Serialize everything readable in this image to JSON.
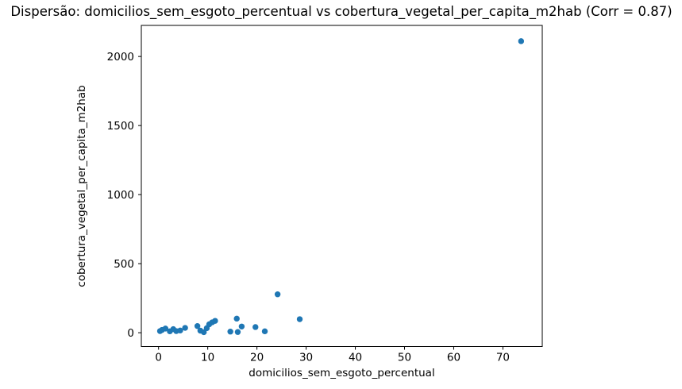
{
  "chart_data": {
    "type": "scatter",
    "title": "Dispersão: domicilios_sem_esgoto_percentual vs cobertura_vegetal_per_capita_m2hab (Corr = 0.87)",
    "xlabel": "domicilios_sem_esgoto_percentual",
    "ylabel": "cobertura_vegetal_per_capita_m2hab",
    "correlation": 0.87,
    "marker_color": "#1f77b4",
    "axis_color": "#000000",
    "background_color": "#ffffff",
    "grid": false,
    "legend_position": "none",
    "xlim": [
      -3.5,
      78
    ],
    "ylim": [
      -100,
      2225
    ],
    "x_ticks": [
      0,
      10,
      20,
      30,
      40,
      50,
      60,
      70
    ],
    "y_ticks": [
      0,
      500,
      1000,
      1500,
      2000
    ],
    "points": [
      [
        0.3,
        12
      ],
      [
        0.7,
        20
      ],
      [
        1.4,
        30
      ],
      [
        2.3,
        10
      ],
      [
        3.0,
        26
      ],
      [
        3.6,
        12
      ],
      [
        4.4,
        16
      ],
      [
        5.4,
        35
      ],
      [
        7.9,
        48
      ],
      [
        8.5,
        15
      ],
      [
        9.2,
        4
      ],
      [
        9.8,
        33
      ],
      [
        10.3,
        61
      ],
      [
        10.9,
        75
      ],
      [
        11.5,
        86
      ],
      [
        14.6,
        8
      ],
      [
        15.9,
        102
      ],
      [
        16.1,
        5
      ],
      [
        16.9,
        45
      ],
      [
        19.7,
        41
      ],
      [
        21.6,
        10
      ],
      [
        24.2,
        278
      ],
      [
        28.7,
        98
      ],
      [
        73.7,
        2111
      ]
    ]
  }
}
